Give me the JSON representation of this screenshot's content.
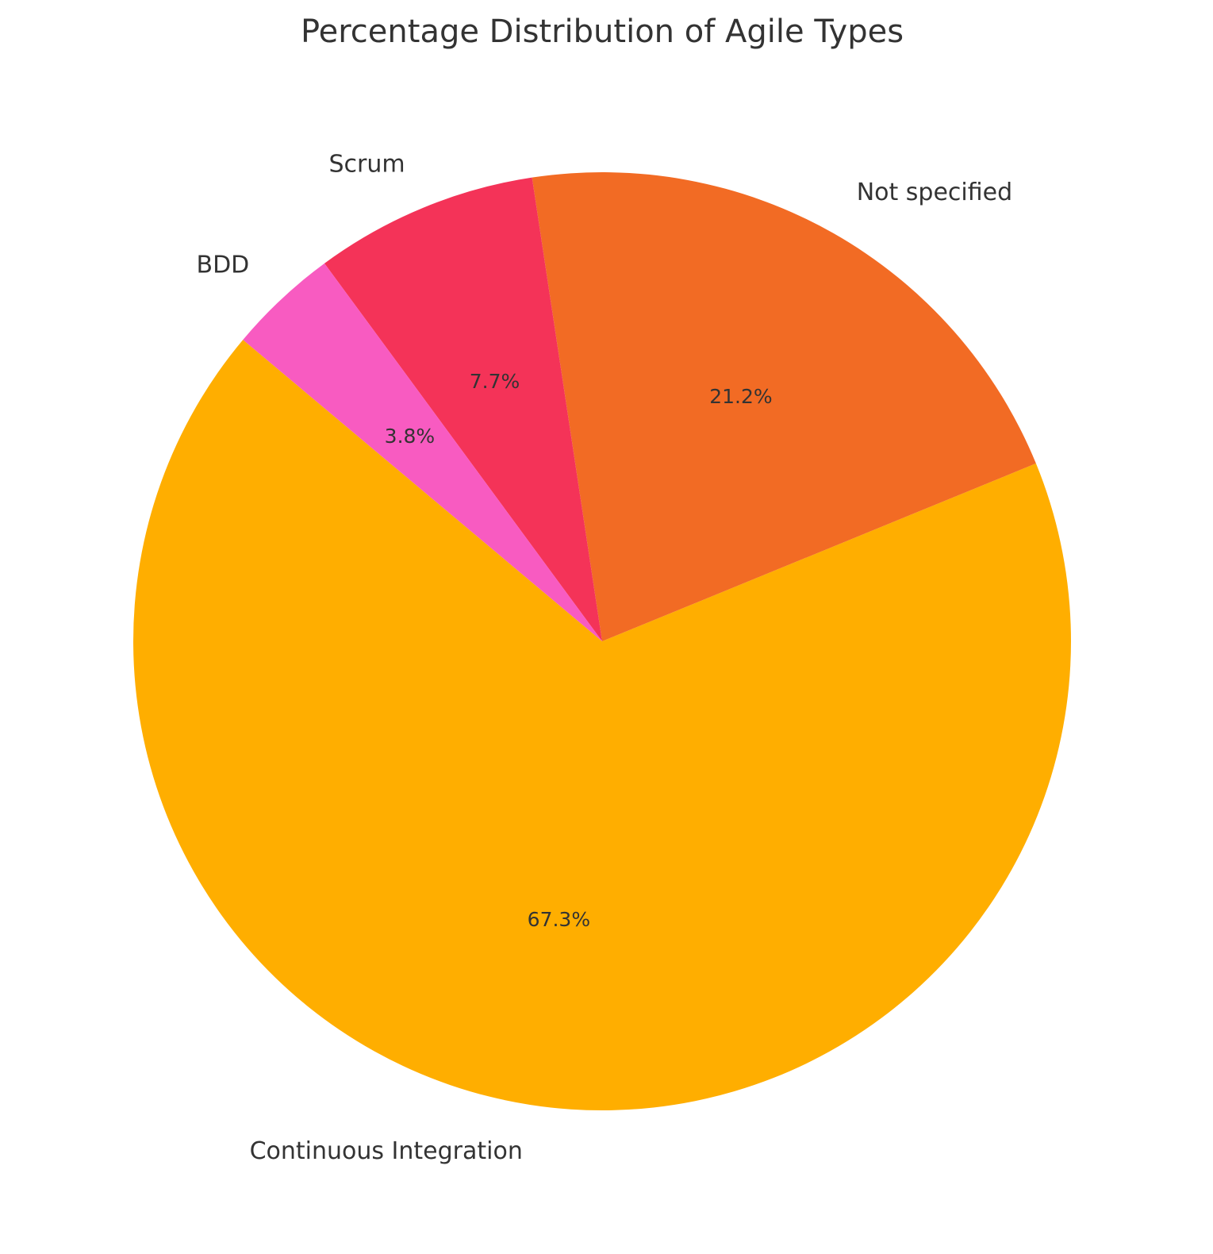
{
  "chart_data": {
    "type": "pie",
    "title": "Percentage Distribution of Agile Types",
    "categories": [
      "Continuous Integration",
      "Not specified",
      "Scrum",
      "BDD"
    ],
    "values": [
      67.3,
      21.2,
      7.7,
      3.8
    ],
    "value_labels": [
      "67.3%",
      "21.2%",
      "7.7%",
      "3.8%"
    ],
    "colors": [
      "#FFAE00",
      "#F26B24",
      "#F43358",
      "#F85BC1"
    ],
    "start_angle_deg": 140,
    "direction": "counterclockwise"
  }
}
